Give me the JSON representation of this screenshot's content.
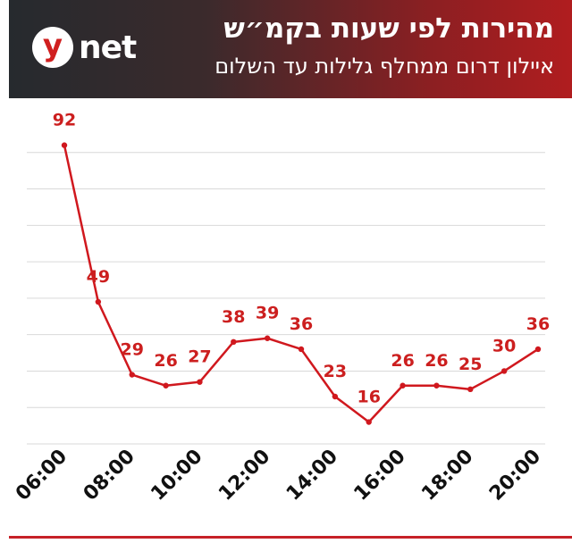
{
  "header": {
    "logo_letter": "y",
    "logo_word": "net",
    "title": "מהירות לפי שעות בקמ״ש",
    "subtitle": "איילון דרום ממחלף גלילות עד השלום"
  },
  "colors": {
    "line": "#d0181e",
    "label": "#cc1f1f",
    "grid": "#d9d9d9",
    "axis_text": "#111111",
    "header_dark": "#262a2e",
    "header_red": "#b01d1f"
  },
  "chart_data": {
    "type": "line",
    "title": "מהירות לפי שעות בקמ״ש",
    "subtitle": "איילון דרום ממחלף גלילות עד השלום",
    "x": [
      "06:00",
      "07:00",
      "08:00",
      "09:00",
      "10:00",
      "11:00",
      "12:00",
      "13:00",
      "14:00",
      "15:00",
      "16:00",
      "17:00",
      "18:00",
      "19:00",
      "20:00"
    ],
    "values": [
      92,
      49,
      29,
      26,
      27,
      38,
      39,
      36,
      23,
      16,
      26,
      26,
      25,
      30,
      36
    ],
    "tick_labels": [
      "06:00",
      "08:00",
      "10:00",
      "12:00",
      "14:00",
      "16:00",
      "18:00",
      "20:00"
    ],
    "xlabel": "",
    "ylabel": "",
    "ylim": [
      10,
      100
    ],
    "grid": true,
    "data_labels": true
  }
}
